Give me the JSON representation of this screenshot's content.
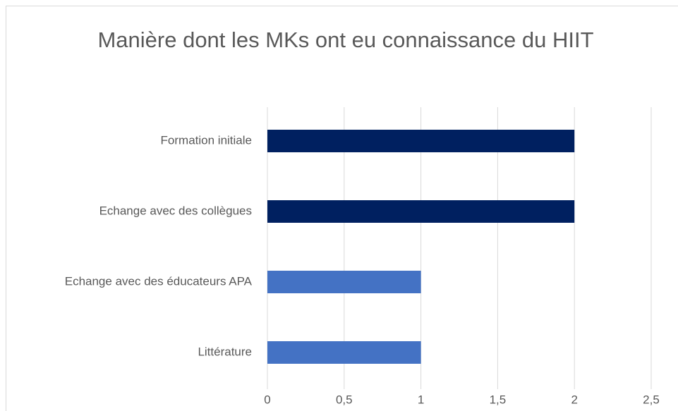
{
  "chart_data": {
    "type": "barh",
    "title": "Manière dont les MKs ont eu connaissance du HIIT",
    "categories": [
      "Formation initiale",
      "Echange avec des collègues",
      "Echange avec des éducateurs APA",
      "Littérature"
    ],
    "values": [
      2,
      2,
      1,
      1
    ],
    "colors": [
      "#002060",
      "#002060",
      "#4472c4",
      "#4472c4"
    ],
    "xlim": [
      0,
      2.5
    ],
    "xticks": [
      0,
      {
        "value": 0.5,
        "label": "0,5"
      },
      1,
      {
        "value": 1.5,
        "label": "1,5"
      },
      2,
      {
        "value": 2.5,
        "label": "2,5"
      }
    ],
    "grid": true
  }
}
